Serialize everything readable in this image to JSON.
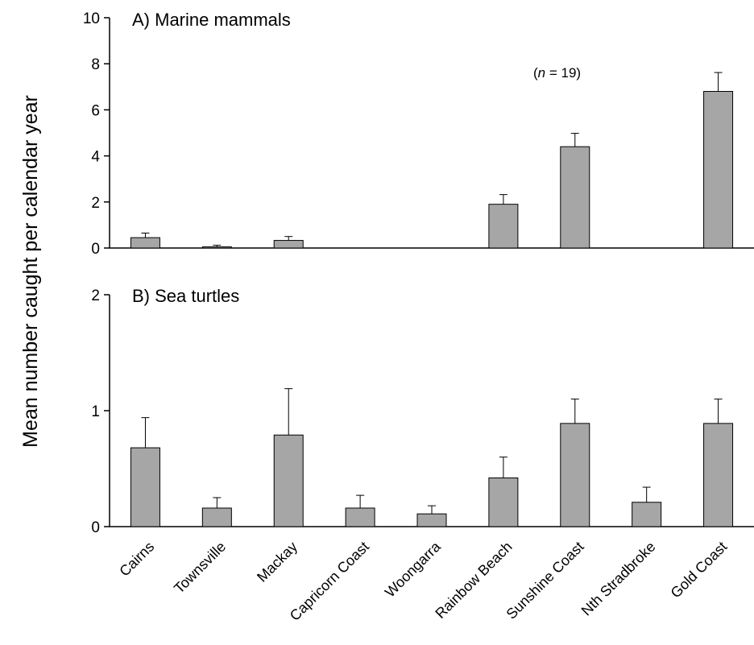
{
  "chart_data": [
    {
      "type": "bar",
      "title": "A)  Marine mammals",
      "ylabel": "Mean number caught per calendar year",
      "categories": [
        "Cairns",
        "Townsville",
        "Mackay",
        "Capricorn Coast",
        "Woongarra",
        "Rainbow Beach",
        "Sunshine Coast",
        "Nth Stradbroke",
        "Gold Coast"
      ],
      "values": [
        0.45,
        0.05,
        0.33,
        0,
        0,
        1.9,
        4.4,
        0,
        6.8
      ],
      "errors": [
        0.2,
        0.07,
        0.17,
        0,
        0,
        0.42,
        0.58,
        0,
        0.82
      ],
      "ylim": [
        0,
        10
      ],
      "yticks": [
        "0",
        "2",
        "4",
        "6",
        "8",
        "10"
      ],
      "annotation": {
        "prefix": "(",
        "italic": "n",
        "suffix": " = 19)"
      },
      "bar_color": "#a6a6a6"
    },
    {
      "type": "bar",
      "title": "B)  Sea turtles",
      "categories": [
        "Cairns",
        "Townsville",
        "Mackay",
        "Capricorn Coast",
        "Woongarra",
        "Rainbow Beach",
        "Sunshine Coast",
        "Nth Stradbroke",
        "Gold Coast"
      ],
      "values": [
        0.68,
        0.16,
        0.79,
        0.16,
        0.11,
        0.42,
        0.89,
        0.21,
        0.89
      ],
      "errors": [
        0.26,
        0.09,
        0.4,
        0.11,
        0.07,
        0.18,
        0.21,
        0.13,
        0.21
      ],
      "ylim": [
        0,
        2
      ],
      "yticks": [
        "0",
        "1",
        "2"
      ],
      "bar_color": "#a6a6a6"
    }
  ]
}
